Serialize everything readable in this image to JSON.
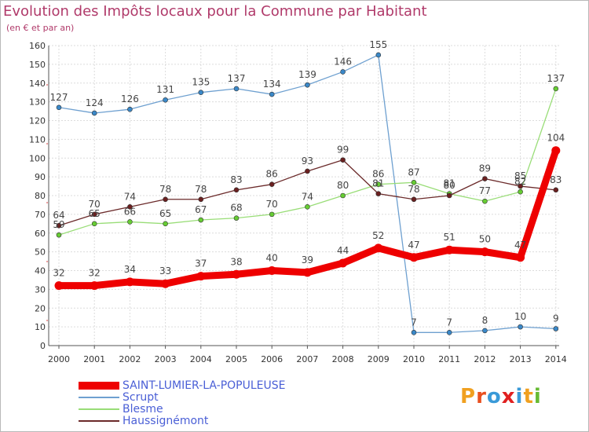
{
  "chart_data": {
    "type": "line",
    "title": "Evolution des Impôts locaux pour la Commune par Habitant",
    "subtitle": "(en € et par an)",
    "xlabel": "",
    "ylabel": "",
    "ylim": [
      0,
      160
    ],
    "yticks": [
      0,
      10,
      20,
      30,
      40,
      50,
      60,
      70,
      80,
      90,
      100,
      110,
      120,
      130,
      140,
      150,
      160
    ],
    "categories": [
      "2000",
      "2001",
      "2002",
      "2003",
      "2004",
      "2005",
      "2006",
      "2007",
      "2008",
      "2009",
      "2010",
      "2011",
      "2012",
      "2013",
      "2014"
    ],
    "grid": true,
    "series": [
      {
        "name": "SAINT-LUMIER-LA-POPULEUSE",
        "color": "#ee0000",
        "marker": "#ee0000",
        "thick": true,
        "values": [
          32,
          32,
          34,
          33,
          37,
          38,
          40,
          39,
          44,
          52,
          47,
          51,
          50,
          47,
          104
        ]
      },
      {
        "name": "Scrupt",
        "color": "#6ea0d0",
        "marker": "#3a88c8",
        "values": [
          127,
          124,
          126,
          131,
          135,
          137,
          134,
          139,
          146,
          155,
          7,
          7,
          8,
          10,
          9
        ]
      },
      {
        "name": "Blesme",
        "color": "#99dd77",
        "marker": "#66cc33",
        "values": [
          59,
          65,
          66,
          65,
          67,
          68,
          70,
          74,
          80,
          86,
          87,
          81,
          77,
          82,
          137
        ]
      },
      {
        "name": "Haussignémont",
        "color": "#6b2a2a",
        "marker": "#6b2020",
        "values": [
          64,
          70,
          74,
          78,
          78,
          83,
          86,
          93,
          99,
          81,
          78,
          80,
          89,
          85,
          83
        ]
      }
    ]
  },
  "legend": {
    "items": [
      {
        "label": "SAINT-LUMIER-LA-POPULEUSE"
      },
      {
        "label": "Scrupt"
      },
      {
        "label": "Blesme"
      },
      {
        "label": "Haussignémont"
      }
    ]
  },
  "logo": {
    "text": "Proxiti",
    "letters": [
      "P",
      "r",
      "o",
      "x",
      "i",
      "t",
      "i"
    ],
    "colors": [
      "#f0a020",
      "#e85020",
      "#3a9ad8",
      "#e02020",
      "#3a9ad8",
      "#f0a020",
      "#66bb33"
    ]
  }
}
